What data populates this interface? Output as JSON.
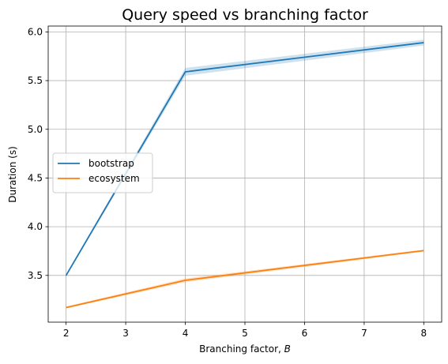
{
  "chart_data": {
    "type": "line",
    "title": "Query speed vs branching factor",
    "xlabel": "Branching factor, ",
    "xlabel_var": "B",
    "ylabel": "Duration (s)",
    "xlim": [
      1.7,
      8.3
    ],
    "ylim": [
      3.02,
      6.06
    ],
    "x_ticks": [
      2,
      3,
      4,
      5,
      6,
      7,
      8
    ],
    "y_ticks": [
      3.5,
      4.0,
      4.5,
      5.0,
      5.5,
      6.0
    ],
    "x_tick_labels": [
      "2",
      "3",
      "4",
      "5",
      "6",
      "7",
      "8"
    ],
    "y_tick_labels": [
      "3.5",
      "4.0",
      "4.5",
      "5.0",
      "5.5",
      "6.0"
    ],
    "grid": true,
    "legend_position": "center-left",
    "x": [
      2,
      4,
      8
    ],
    "series": [
      {
        "name": "bootstrap",
        "color": "#1f77b4",
        "values": [
          3.5,
          5.59,
          5.89
        ],
        "ci_lower": [
          3.49,
          5.55,
          5.86
        ],
        "ci_upper": [
          3.51,
          5.63,
          5.92
        ]
      },
      {
        "name": "ecosystem",
        "color": "#ff7f0e",
        "values": [
          3.17,
          3.45,
          3.755
        ],
        "ci_lower": [
          3.16,
          3.43,
          3.745
        ],
        "ci_upper": [
          3.18,
          3.47,
          3.765
        ]
      }
    ]
  }
}
